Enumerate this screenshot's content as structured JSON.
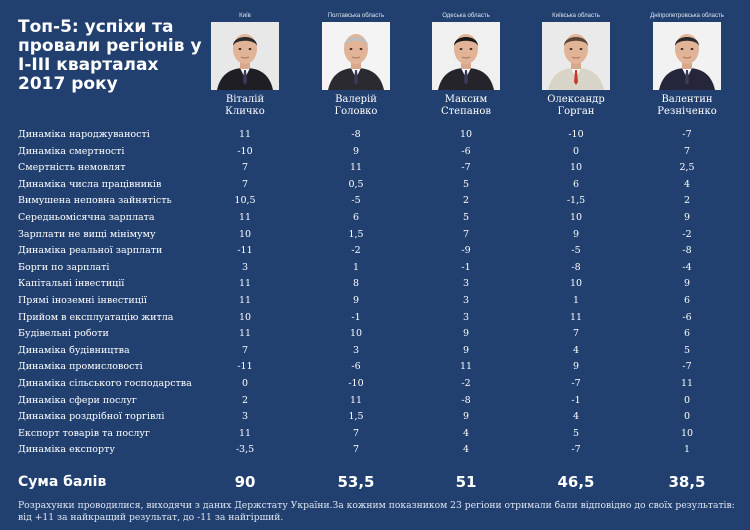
{
  "title": "Топ-5: успіхи та провали регіонів у I-III кварталах 2017 року",
  "people": [
    {
      "region": "Київ",
      "first": "Віталій",
      "last": "Кличко",
      "photo": "portrait-klitschko"
    },
    {
      "region": "Полтавська область",
      "first": "Валерій",
      "last": "Головко",
      "photo": "portrait-holovko"
    },
    {
      "region": "Одеська область",
      "first": "Максим",
      "last": "Степанов",
      "photo": "portrait-stepanov"
    },
    {
      "region": "Київська область",
      "first": "Олександр",
      "last": "Горган",
      "photo": "portrait-horhan"
    },
    {
      "region": "Дніпропетровська область",
      "first": "Валентин",
      "last": "Резніченко",
      "photo": "portrait-reznichenko"
    }
  ],
  "rows": [
    {
      "label": "Динаміка народжуваності",
      "values": [
        "11",
        "-8",
        "10",
        "-10",
        "-7"
      ]
    },
    {
      "label": "Динаміка смертності",
      "values": [
        "-10",
        "9",
        "-6",
        "0",
        "7"
      ]
    },
    {
      "label": "Смертність немовлят",
      "values": [
        "7",
        "11",
        "-7",
        "10",
        "2,5"
      ]
    },
    {
      "label": "Динаміка числа працівників",
      "values": [
        "7",
        "0,5",
        "5",
        "6",
        "4"
      ]
    },
    {
      "label": "Вимушена неповна зайнятість",
      "values": [
        "10,5",
        "-5",
        "2",
        "-1,5",
        "2"
      ]
    },
    {
      "label": "Середньомісячна зарплата",
      "values": [
        "11",
        "6",
        "5",
        "10",
        "9"
      ]
    },
    {
      "label": "Зарплати не вищі мінімуму",
      "values": [
        "10",
        "1,5",
        "7",
        "9",
        "-2"
      ]
    },
    {
      "label": "Динаміка реальної зарплати",
      "values": [
        "-11",
        "-2",
        "-9",
        "-5",
        "-8"
      ]
    },
    {
      "label": "Борги по зарплаті",
      "values": [
        "3",
        "1",
        "-1",
        "-8",
        "-4"
      ]
    },
    {
      "label": "Капітальні інвестиції",
      "values": [
        "11",
        "8",
        "3",
        "10",
        "9"
      ]
    },
    {
      "label": "Прямі іноземні інвестиції",
      "values": [
        "11",
        "9",
        "3",
        "1",
        "6"
      ]
    },
    {
      "label": "Прийом в експлуатацію житла",
      "values": [
        "10",
        "-1",
        "3",
        "11",
        "-6"
      ]
    },
    {
      "label": "Будівельні роботи",
      "values": [
        "11",
        "10",
        "9",
        "7",
        "6"
      ]
    },
    {
      "label": "Динаміка будівництва",
      "values": [
        "7",
        "3",
        "9",
        "4",
        "5"
      ]
    },
    {
      "label": "Динаміка промисловості",
      "values": [
        "-11",
        "-6",
        "11",
        "9",
        "-7"
      ]
    },
    {
      "label": "Динаміка сільського господарства",
      "values": [
        "0",
        "-10",
        "-2",
        "-7",
        "11"
      ]
    },
    {
      "label": "Динаміка сфери послуг",
      "values": [
        "2",
        "11",
        "-8",
        "-1",
        "0"
      ]
    },
    {
      "label": "Динаміка роздрібної торгівлі",
      "values": [
        "3",
        "1,5",
        "9",
        "4",
        "0"
      ]
    },
    {
      "label": "Експорт товарів та послуг",
      "values": [
        "11",
        "7",
        "4",
        "5",
        "10"
      ]
    },
    {
      "label": "Динаміка експорту",
      "values": [
        "-3,5",
        "7",
        "4",
        "-7",
        "1"
      ]
    }
  ],
  "total_label": "Сума балів",
  "totals": [
    "90",
    "53,5",
    "51",
    "46,5",
    "38,5"
  ],
  "footnote": "Розрахунки проводилися, виходячи з даних Держстату України.За кожним показником 23 регіони отримали бали відповідно до своїх результатів: від +11 за найкращий результат, до -11 за найгірший."
}
